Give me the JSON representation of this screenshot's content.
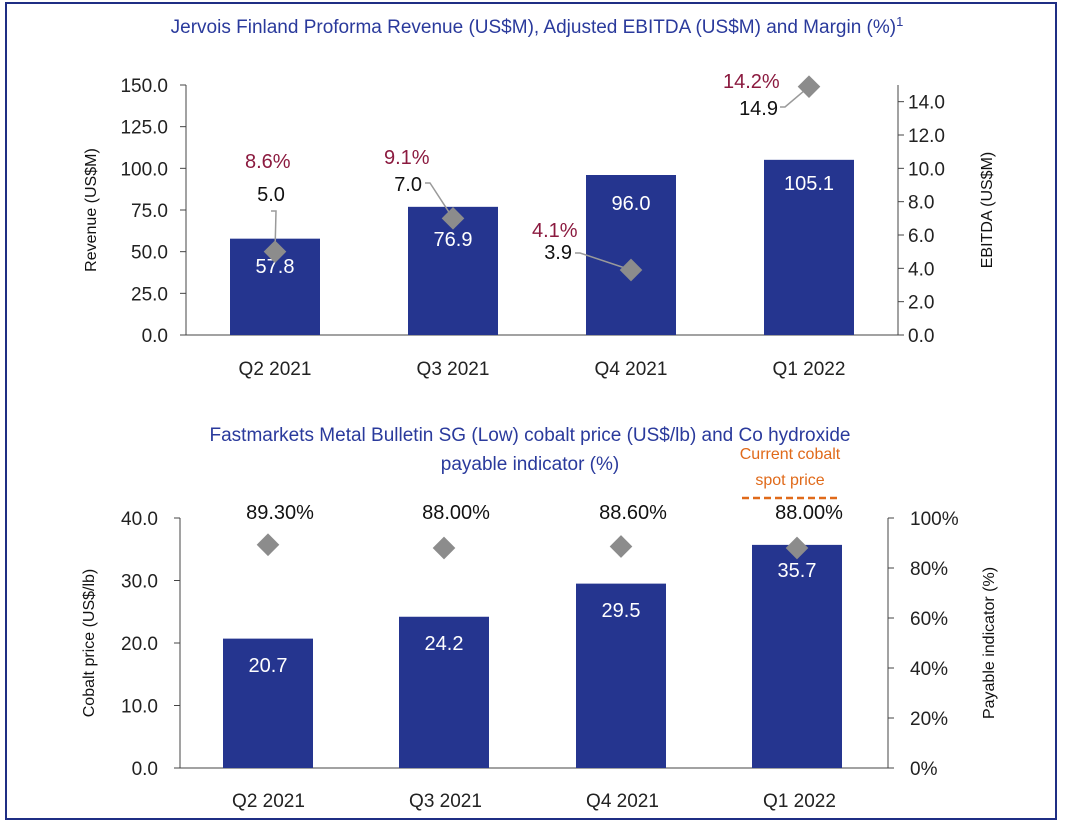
{
  "chart_data": [
    {
      "type": "bar",
      "title": "Jervois Finland Proforma Revenue (US$M), Adjusted EBITDA (US$M) and Margin (%)",
      "title_superscript": "1",
      "categories": [
        "Q2 2021",
        "Q3 2021",
        "Q4 2021",
        "Q1 2022"
      ],
      "series": [
        {
          "name": "",
          "kind": "bar",
          "axis": "left",
          "values": [
            57.8,
            76.9,
            96.0,
            105.1
          ],
          "labels": [
            "57.8",
            "76.9",
            "96.0",
            "105.1"
          ]
        },
        {
          "name": "",
          "kind": "marker",
          "axis": "right",
          "values": [
            5.0,
            7.0,
            3.9,
            14.9
          ],
          "labels": [
            "5.0",
            "7.0",
            "3.9",
            "14.9"
          ]
        }
      ],
      "margins": [
        "8.6%",
        "9.1%",
        "4.1%",
        "14.2%"
      ],
      "ylabel": "Revenue (US$M)",
      "ylabel_right": "EBITDA (US$M)",
      "ylim": [
        0,
        150
      ],
      "yticks": [
        "0.0",
        "25.0",
        "50.0",
        "75.0",
        "100.0",
        "125.0",
        "150.0"
      ],
      "ylim_right": [
        0,
        15
      ],
      "yticks_right": [
        "0.0",
        "2.0",
        "4.0",
        "6.0",
        "8.0",
        "10.0",
        "12.0",
        "14.0"
      ],
      "grid": false,
      "colors": {
        "bar": "#25358f",
        "marker": "#8c8c8c",
        "margin": "#8b1a3f",
        "title": "#2a3a9c"
      }
    },
    {
      "type": "bar",
      "title_lines": [
        "Fastmarkets Metal Bulletin SG (Low) cobalt price (US$/lb) and Co hydroxide",
        "payable indicator (%)"
      ],
      "categories": [
        "Q2 2021",
        "Q3 2021",
        "Q4 2021",
        "Q1 2022"
      ],
      "series": [
        {
          "name": "",
          "kind": "bar",
          "axis": "left",
          "values": [
            20.7,
            24.2,
            29.5,
            35.7
          ],
          "labels": [
            "20.7",
            "24.2",
            "29.5",
            "35.7"
          ]
        },
        {
          "name": "",
          "kind": "marker",
          "axis": "right",
          "values": [
            89.3,
            88.0,
            88.6,
            88.0
          ],
          "labels": [
            "89.30%",
            "88.00%",
            "88.60%",
            "88.00%"
          ]
        }
      ],
      "annotation": [
        "Current cobalt",
        "spot price"
      ],
      "ylabel": "Cobalt price (US$/lb)",
      "ylabel_right": "Payable indicator (%)",
      "ylim": [
        0,
        40
      ],
      "yticks": [
        "0.0",
        "10.0",
        "20.0",
        "30.0",
        "40.0"
      ],
      "ylim_right": [
        0,
        100
      ],
      "yticks_right": [
        "0%",
        "20%",
        "40%",
        "60%",
        "80%",
        "100%"
      ],
      "grid": false,
      "colors": {
        "bar": "#25358f",
        "marker": "#8c8c8c",
        "annotation": "#e06a1a",
        "title": "#2a3a9c"
      }
    }
  ]
}
